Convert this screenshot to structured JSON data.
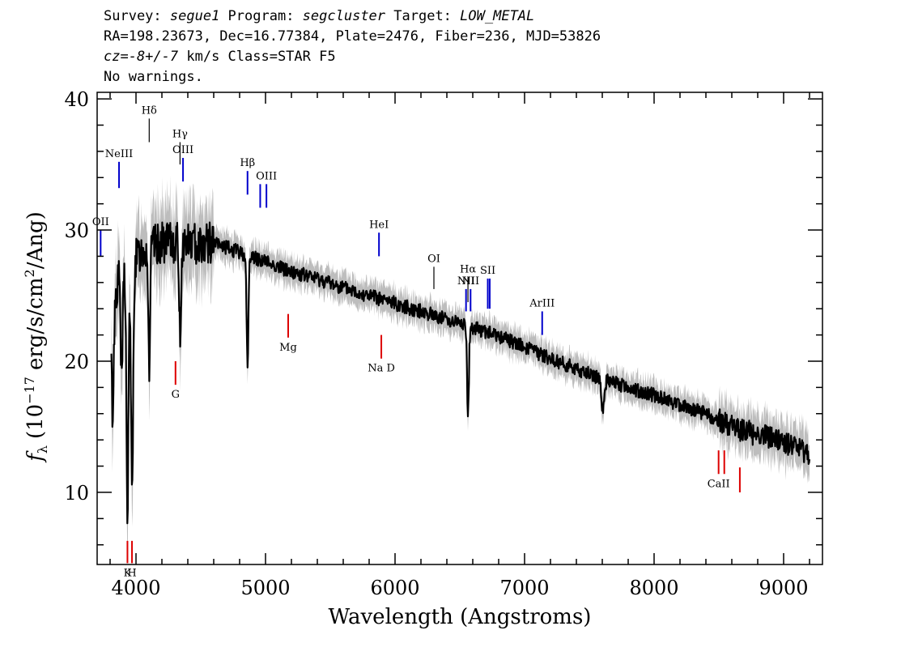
{
  "header": {
    "line1": {
      "survey_key": "Survey: ",
      "survey": "segue1",
      "program_key": " Program: ",
      "program": "segcluster",
      "target_key": " Target: ",
      "target": "LOW_METAL"
    },
    "line2": "RA=198.23673, Dec=16.77384, Plate=2476, Fiber=236, MJD=53826",
    "line3": {
      "cz": "cz=-8+/-7",
      "rest": " km/s Class=STAR F5"
    },
    "line4": "No warnings."
  },
  "chart_data": {
    "type": "line",
    "title": "",
    "xlabel": "Wavelength (Angstroms)",
    "ylabel_prefix": "f",
    "ylabel_sub": "λ",
    "ylabel_main": "(10",
    "ylabel_exp": "−17",
    "ylabel_unit": "erg/s/cm",
    "ylabel_exp2": "2",
    "ylabel_tail": "/Ang)",
    "xlim": [
      3700,
      9300
    ],
    "ylim": [
      4.5,
      40.5
    ],
    "xticks": [
      4000,
      5000,
      6000,
      7000,
      8000,
      9000
    ],
    "yticks": [
      10,
      20,
      30
    ],
    "ytick_extra": 40,
    "colors": {
      "flux": "#000000",
      "error_band": "#bdbdbd",
      "emission": "#0000cc",
      "absorption": "#dd0000",
      "sky": "#000000"
    },
    "continuum_anchors": [
      [
        3700,
        21
      ],
      [
        3800,
        23
      ],
      [
        3880,
        27
      ],
      [
        3950,
        27
      ],
      [
        4050,
        28.5
      ],
      [
        4200,
        29
      ],
      [
        4400,
        29
      ],
      [
        4600,
        29
      ],
      [
        4800,
        28.3
      ],
      [
        5000,
        27.6
      ],
      [
        5200,
        26.8
      ],
      [
        5400,
        26.3
      ],
      [
        5600,
        25.6
      ],
      [
        5800,
        25.0
      ],
      [
        6000,
        24.4
      ],
      [
        6200,
        23.8
      ],
      [
        6400,
        23.2
      ],
      [
        6600,
        22.6
      ],
      [
        6800,
        21.9
      ],
      [
        7000,
        21.1
      ],
      [
        7200,
        20.2
      ],
      [
        7400,
        19.4
      ],
      [
        7600,
        18.6
      ],
      [
        7800,
        18.0
      ],
      [
        8000,
        17.4
      ],
      [
        8200,
        16.7
      ],
      [
        8400,
        16.0
      ],
      [
        8600,
        15.0
      ],
      [
        8800,
        14.4
      ],
      [
        9000,
        13.8
      ],
      [
        9200,
        12.9
      ]
    ],
    "absorption_features": [
      {
        "wave": 3820,
        "depth": 8,
        "width": 8
      },
      {
        "wave": 3889,
        "depth": 9,
        "width": 7
      },
      {
        "wave": 3934,
        "depth": 19,
        "width": 8
      },
      {
        "wave": 3970,
        "depth": 18,
        "width": 8
      },
      {
        "wave": 4102,
        "depth": 9,
        "width": 7
      },
      {
        "wave": 4341,
        "depth": 7,
        "width": 7
      },
      {
        "wave": 4861,
        "depth": 8.5,
        "width": 7
      },
      {
        "wave": 6563,
        "depth": 7,
        "width": 7
      },
      {
        "wave": 7605,
        "depth": 2.5,
        "width": 10
      }
    ],
    "line_markers": [
      {
        "label": "OII",
        "wave": 3727,
        "y_top": 30.0,
        "y_bot": 28.0,
        "type": "emission",
        "label_pos": "above"
      },
      {
        "label": "NeIII",
        "wave": 3869,
        "y_top": 35.2,
        "y_bot": 33.2,
        "type": "emission",
        "label_pos": "above"
      },
      {
        "label": "Hδ",
        "wave": 4102,
        "y_top": 38.5,
        "y_bot": 36.7,
        "type": "sky",
        "label_pos": "above"
      },
      {
        "label": "Hγ",
        "wave": 4340,
        "y_top": 36.7,
        "y_bot": 35.0,
        "type": "sky",
        "label_pos": "above"
      },
      {
        "label": "OIII",
        "wave": 4363,
        "y_top": 35.5,
        "y_bot": 33.7,
        "type": "emission",
        "label_pos": "above"
      },
      {
        "label": "Hβ",
        "wave": 4861,
        "y_top": 34.5,
        "y_bot": 32.7,
        "type": "emission",
        "label_pos": "above"
      },
      {
        "label": "OIII",
        "wave": 4959,
        "y_top": 33.5,
        "y_bot": 31.7,
        "type": "emission",
        "label_pos": "none"
      },
      {
        "label": "OIII",
        "wave": 5007,
        "y_top": 33.5,
        "y_bot": 31.7,
        "type": "emission",
        "label_pos": "above"
      },
      {
        "label": "HeI",
        "wave": 5876,
        "y_top": 29.8,
        "y_bot": 28.0,
        "type": "emission",
        "label_pos": "above"
      },
      {
        "label": "OI",
        "wave": 6300,
        "y_top": 27.2,
        "y_bot": 25.5,
        "type": "sky",
        "label_pos": "above"
      },
      {
        "label": "NII",
        "wave": 6548,
        "y_top": 25.5,
        "y_bot": 23.8,
        "type": "emission",
        "label_pos": "above"
      },
      {
        "label": "Hα",
        "wave": 6563,
        "y_top": 26.4,
        "y_bot": 24.5,
        "type": "sky",
        "label_pos": "above"
      },
      {
        "label": "NII",
        "wave": 6583,
        "y_top": 25.5,
        "y_bot": 23.8,
        "type": "emission",
        "label_pos": "above"
      },
      {
        "label": "SII",
        "wave": 6716,
        "y_top": 26.3,
        "y_bot": 24.0,
        "type": "emission",
        "label_pos": "above"
      },
      {
        "label": "SII",
        "wave": 6731,
        "y_top": 26.3,
        "y_bot": 24.0,
        "type": "emission",
        "label_pos": "none"
      },
      {
        "label": "ArIII",
        "wave": 7136,
        "y_top": 23.8,
        "y_bot": 22.0,
        "type": "emission",
        "label_pos": "above"
      },
      {
        "label": "K",
        "wave": 3934,
        "y_top": 6.3,
        "y_bot": 4.6,
        "type": "absorption",
        "label_pos": "below"
      },
      {
        "label": "H",
        "wave": 3969,
        "y_top": 6.3,
        "y_bot": 4.6,
        "type": "absorption",
        "label_pos": "below"
      },
      {
        "label": "G",
        "wave": 4305,
        "y_top": 20.0,
        "y_bot": 18.2,
        "type": "absorption",
        "label_pos": "below"
      },
      {
        "label": "Mg",
        "wave": 5175,
        "y_top": 23.6,
        "y_bot": 21.8,
        "type": "absorption",
        "label_pos": "below"
      },
      {
        "label": "Na D",
        "wave": 5894,
        "y_top": 22.0,
        "y_bot": 20.2,
        "type": "absorption",
        "label_pos": "below"
      },
      {
        "label": "CaII",
        "wave": 8498,
        "y_top": 13.2,
        "y_bot": 11.4,
        "type": "absorption",
        "label_pos": "below"
      },
      {
        "label": "CaII",
        "wave": 8542,
        "y_top": 13.2,
        "y_bot": 11.4,
        "type": "absorption",
        "label_pos": "none"
      },
      {
        "label": "CaII",
        "wave": 8662,
        "y_top": 11.9,
        "y_bot": 10.0,
        "type": "absorption",
        "label_pos": "none"
      }
    ]
  }
}
